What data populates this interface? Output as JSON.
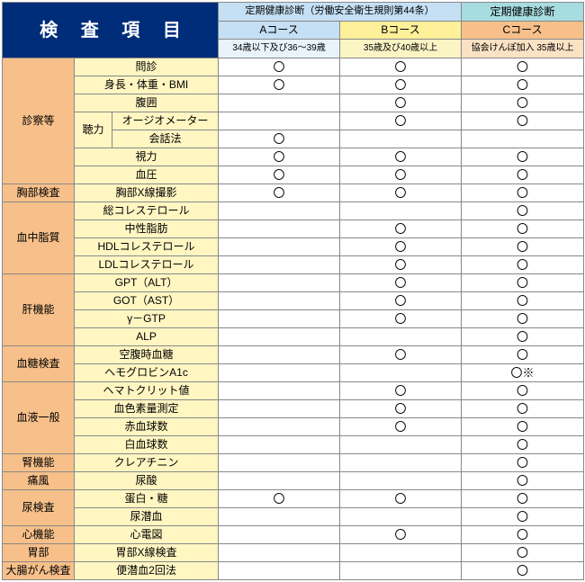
{
  "title": "検 査 項 目",
  "header": {
    "group1": "定期健康診断（労働安全衛生規則第44条）",
    "group2": "定期健康診断",
    "aCourse": "Aコース",
    "bCourse": "Bコース",
    "cCourse": "Cコース",
    "subA": "34歳以下及び36～39歳",
    "subB": "35歳及び40歳以上",
    "subC": "協会けんぽ加入 35歳以上"
  },
  "categories": [
    {
      "name": "診察等",
      "rows": [
        {
          "label": "問診",
          "span": 3,
          "marks": [
            "〇",
            "〇",
            "〇"
          ]
        },
        {
          "label": "身長・体重・BMI",
          "span": 3,
          "marks": [
            "〇",
            "〇",
            "〇"
          ]
        },
        {
          "label": "腹囲",
          "span": 3,
          "marks": [
            "",
            "〇",
            "〇"
          ]
        },
        {
          "label": "オージオメーター",
          "span": 2,
          "sublabel": "聴力",
          "marks": [
            "",
            "〇",
            "〇"
          ]
        },
        {
          "label": "会話法",
          "span": 2,
          "marks": [
            "〇",
            "",
            ""
          ]
        },
        {
          "label": "視力",
          "span": 3,
          "marks": [
            "〇",
            "〇",
            "〇"
          ]
        },
        {
          "label": "血圧",
          "span": 3,
          "marks": [
            "〇",
            "〇",
            "〇"
          ]
        }
      ]
    },
    {
      "name": "胸部検査",
      "rows": [
        {
          "label": "胸部X線撮影",
          "span": 3,
          "marks": [
            "〇",
            "〇",
            "〇"
          ]
        }
      ]
    },
    {
      "name": "血中脂質",
      "rows": [
        {
          "label": "総コレステロール",
          "span": 3,
          "marks": [
            "",
            "",
            "〇"
          ]
        },
        {
          "label": "中性脂肪",
          "span": 3,
          "marks": [
            "",
            "〇",
            "〇"
          ]
        },
        {
          "label": "HDLコレステロール",
          "span": 3,
          "marks": [
            "",
            "〇",
            "〇"
          ]
        },
        {
          "label": "LDLコレステロール",
          "span": 3,
          "marks": [
            "",
            "〇",
            "〇"
          ]
        }
      ]
    },
    {
      "name": "肝機能",
      "rows": [
        {
          "label": "GPT（ALT）",
          "span": 3,
          "marks": [
            "",
            "〇",
            "〇"
          ]
        },
        {
          "label": "GOT（AST）",
          "span": 3,
          "marks": [
            "",
            "〇",
            "〇"
          ]
        },
        {
          "label": "γ－GTP",
          "span": 3,
          "marks": [
            "",
            "〇",
            "〇"
          ]
        },
        {
          "label": "ALP",
          "span": 3,
          "marks": [
            "",
            "",
            "〇"
          ]
        }
      ]
    },
    {
      "name": "血糖検査",
      "rows": [
        {
          "label": "空腹時血糖",
          "span": 3,
          "marks": [
            "",
            "〇",
            "〇"
          ]
        },
        {
          "label": "ヘモグロビンA1c",
          "span": 3,
          "marks": [
            "",
            "",
            "〇※"
          ]
        }
      ]
    },
    {
      "name": "血液一般",
      "rows": [
        {
          "label": "ヘマトクリット値",
          "span": 3,
          "marks": [
            "",
            "〇",
            "〇"
          ]
        },
        {
          "label": "血色素量測定",
          "span": 3,
          "marks": [
            "",
            "〇",
            "〇"
          ]
        },
        {
          "label": "赤血球数",
          "span": 3,
          "marks": [
            "",
            "〇",
            "〇"
          ]
        },
        {
          "label": "白血球数",
          "span": 3,
          "marks": [
            "",
            "",
            "〇"
          ]
        }
      ]
    },
    {
      "name": "腎機能",
      "rows": [
        {
          "label": "クレアチニン",
          "span": 3,
          "marks": [
            "",
            "",
            "〇"
          ]
        }
      ]
    },
    {
      "name": "痛風",
      "rows": [
        {
          "label": "尿酸",
          "span": 3,
          "marks": [
            "",
            "",
            "〇"
          ]
        }
      ]
    },
    {
      "name": "尿検査",
      "rows": [
        {
          "label": "蛋白・糖",
          "span": 3,
          "marks": [
            "〇",
            "〇",
            "〇"
          ]
        },
        {
          "label": "尿潜血",
          "span": 3,
          "marks": [
            "",
            "",
            "〇"
          ]
        }
      ]
    },
    {
      "name": "心機能",
      "rows": [
        {
          "label": "心電図",
          "span": 3,
          "marks": [
            "",
            "〇",
            "〇"
          ]
        }
      ]
    },
    {
      "name": "胃部",
      "rows": [
        {
          "label": "胃部X線検査",
          "span": 3,
          "marks": [
            "",
            "",
            "〇"
          ]
        }
      ]
    },
    {
      "name": "大腸がん検査",
      "rows": [
        {
          "label": "便潜血2回法",
          "span": 3,
          "marks": [
            "",
            "",
            "〇"
          ]
        }
      ]
    }
  ]
}
